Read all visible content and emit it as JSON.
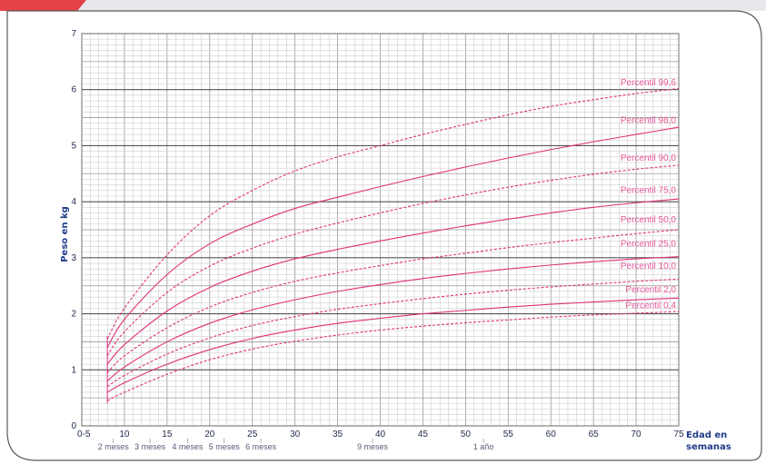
{
  "colors": {
    "background_band": "#e8e8ec",
    "card_border": "#5a5a5a",
    "accent_red": "#e3242b",
    "curve": "#e0307a",
    "curve_label": "#e85a9a",
    "grid_major": "#9a9a9a",
    "grid_minor": "#c4c4c4",
    "text_axis": "#1f3c88"
  },
  "chart_data": {
    "type": "line",
    "ylabel": "Peso en kg",
    "xlabel": "Edad en semanas",
    "xlabel_lines": [
      "Edad en",
      "semanas"
    ],
    "xlim": [
      5,
      75
    ],
    "ylim": [
      0,
      7
    ],
    "x_tick_labels": [
      "0-5",
      "10",
      "15",
      "20",
      "25",
      "30",
      "35",
      "40",
      "45",
      "50",
      "55",
      "60",
      "65",
      "70",
      "75"
    ],
    "x_tick_values": [
      5,
      10,
      15,
      20,
      25,
      30,
      35,
      40,
      45,
      50,
      55,
      60,
      65,
      70,
      75
    ],
    "y_tick_labels": [
      "0",
      "1",
      "2",
      "3",
      "4",
      "5",
      "6",
      "7"
    ],
    "y_tick_values": [
      0,
      1,
      2,
      3,
      4,
      5,
      6,
      7
    ],
    "age_labels": [
      {
        "text": "2 meses",
        "x": 8.7
      },
      {
        "text": "3 meses",
        "x": 13.0
      },
      {
        "text": "4 meses",
        "x": 17.4
      },
      {
        "text": "5 meses",
        "x": 21.7
      },
      {
        "text": "6 meses",
        "x": 26.0
      },
      {
        "text": "9 meses",
        "x": 39.1
      },
      {
        "text": "1 año",
        "x": 52.1
      }
    ],
    "grid": true,
    "series": [
      {
        "name": "Percentil 99,6",
        "style": "dashed",
        "x": [
          8,
          10,
          15,
          20,
          25,
          30,
          35,
          40,
          45,
          50,
          55,
          60,
          65,
          70,
          75
        ],
        "values": [
          1.55,
          2.1,
          3.05,
          3.75,
          4.2,
          4.55,
          4.8,
          5.0,
          5.2,
          5.38,
          5.55,
          5.7,
          5.82,
          5.93,
          6.02
        ]
      },
      {
        "name": "Percentil 98,0",
        "style": "solid",
        "x": [
          8,
          10,
          15,
          20,
          25,
          30,
          35,
          40,
          45,
          50,
          55,
          60,
          65,
          70,
          75
        ],
        "values": [
          1.4,
          1.9,
          2.7,
          3.25,
          3.6,
          3.88,
          4.08,
          4.27,
          4.45,
          4.62,
          4.78,
          4.93,
          5.07,
          5.2,
          5.33
        ]
      },
      {
        "name": "Percentil 90,0",
        "style": "dashed",
        "x": [
          8,
          10,
          15,
          20,
          25,
          30,
          35,
          40,
          45,
          50,
          55,
          60,
          65,
          70,
          75
        ],
        "values": [
          1.25,
          1.68,
          2.38,
          2.85,
          3.17,
          3.42,
          3.62,
          3.8,
          3.97,
          4.12,
          4.26,
          4.38,
          4.49,
          4.58,
          4.65
        ]
      },
      {
        "name": "Percentil 75,0",
        "style": "solid",
        "x": [
          8,
          10,
          15,
          20,
          25,
          30,
          35,
          40,
          45,
          50,
          55,
          60,
          65,
          70,
          75
        ],
        "values": [
          1.1,
          1.45,
          2.05,
          2.47,
          2.76,
          2.98,
          3.15,
          3.3,
          3.44,
          3.57,
          3.69,
          3.8,
          3.9,
          3.98,
          4.05
        ]
      },
      {
        "name": "Percentil 50,0",
        "style": "dashed",
        "x": [
          8,
          10,
          15,
          20,
          25,
          30,
          35,
          40,
          45,
          50,
          55,
          60,
          65,
          70,
          75
        ],
        "values": [
          0.95,
          1.25,
          1.75,
          2.12,
          2.38,
          2.58,
          2.73,
          2.86,
          2.98,
          3.08,
          3.18,
          3.27,
          3.35,
          3.43,
          3.5
        ]
      },
      {
        "name": "Percentil 25,0",
        "style": "solid",
        "x": [
          8,
          10,
          15,
          20,
          25,
          30,
          35,
          40,
          45,
          50,
          55,
          60,
          65,
          70,
          75
        ],
        "values": [
          0.8,
          1.05,
          1.5,
          1.83,
          2.07,
          2.25,
          2.4,
          2.52,
          2.63,
          2.72,
          2.8,
          2.87,
          2.93,
          2.98,
          3.02
        ]
      },
      {
        "name": "Percentil 10,0",
        "style": "dashed",
        "x": [
          8,
          10,
          15,
          20,
          25,
          30,
          35,
          40,
          45,
          50,
          55,
          60,
          65,
          70,
          75
        ],
        "values": [
          0.7,
          0.9,
          1.28,
          1.57,
          1.79,
          1.95,
          2.08,
          2.18,
          2.27,
          2.35,
          2.42,
          2.48,
          2.53,
          2.58,
          2.62
        ]
      },
      {
        "name": "Percentil 2,0",
        "style": "solid",
        "x": [
          8,
          10,
          15,
          20,
          25,
          30,
          35,
          40,
          45,
          50,
          55,
          60,
          65,
          70,
          75
        ],
        "values": [
          0.6,
          0.77,
          1.1,
          1.36,
          1.56,
          1.71,
          1.83,
          1.92,
          2.0,
          2.06,
          2.12,
          2.17,
          2.21,
          2.25,
          2.28
        ]
      },
      {
        "name": "Percentil 0,4",
        "style": "dashed",
        "x": [
          8,
          10,
          15,
          20,
          25,
          30,
          35,
          40,
          45,
          50,
          55,
          60,
          65,
          70,
          75
        ],
        "values": [
          0.45,
          0.6,
          0.92,
          1.18,
          1.37,
          1.51,
          1.62,
          1.71,
          1.78,
          1.84,
          1.89,
          1.94,
          1.98,
          2.01,
          2.04
        ]
      }
    ],
    "curve_label_y": [
      6.08,
      5.4,
      4.73,
      4.16,
      3.63,
      3.2,
      2.8,
      2.38,
      2.1
    ]
  }
}
